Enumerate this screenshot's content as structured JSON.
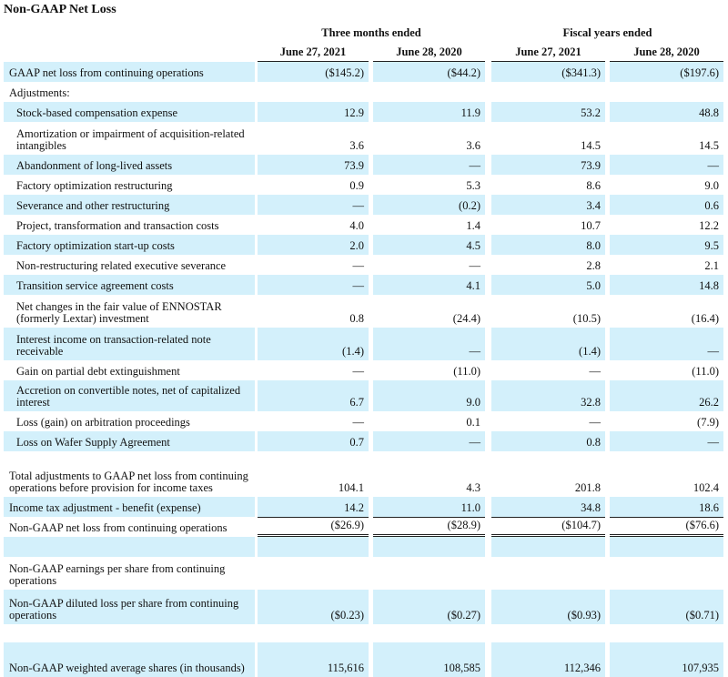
{
  "header": {
    "title": "Non-GAAP Net Loss"
  },
  "columns": {
    "groups": [
      "Three months ended",
      "Fiscal years ended"
    ],
    "dates": [
      "June 27, 2021",
      "June 28, 2020",
      "June 27, 2021",
      "June 28, 2020"
    ]
  },
  "rows": [
    {
      "label": "GAAP net loss from continuing operations",
      "values": [
        "($145.2)",
        "($44.2)",
        "($341.3)",
        "($197.6)"
      ]
    },
    {
      "label": "Adjustments:"
    },
    {
      "label": "Stock-based compensation expense",
      "values": [
        "12.9",
        "11.9",
        "53.2",
        "48.8"
      ]
    },
    {
      "label": "Amortization or impairment of acquisition-related intangibles",
      "values": [
        "3.6",
        "3.6",
        "14.5",
        "14.5"
      ]
    },
    {
      "label": "Abandonment of long-lived assets",
      "values": [
        "73.9",
        "—",
        "73.9",
        "—"
      ]
    },
    {
      "label": "Factory optimization restructuring",
      "values": [
        "0.9",
        "5.3",
        "8.6",
        "9.0"
      ]
    },
    {
      "label": "Severance and other restructuring",
      "values": [
        "—",
        "(0.2)",
        "3.4",
        "0.6"
      ]
    },
    {
      "label": "Project, transformation and transaction costs",
      "values": [
        "4.0",
        "1.4",
        "10.7",
        "12.2"
      ]
    },
    {
      "label": "Factory optimization start-up costs",
      "values": [
        "2.0",
        "4.5",
        "8.0",
        "9.5"
      ]
    },
    {
      "label": "Non-restructuring related executive severance",
      "values": [
        "—",
        "—",
        "2.8",
        "2.1"
      ]
    },
    {
      "label": "Transition service agreement costs",
      "values": [
        "—",
        "4.1",
        "5.0",
        "14.8"
      ]
    },
    {
      "label": "Net changes in the fair value of ENNOSTAR (formerly Lextar) investment",
      "values": [
        "0.8",
        "(24.4)",
        "(10.5)",
        "(16.4)"
      ]
    },
    {
      "label": "Interest income on transaction-related note receivable",
      "values": [
        "(1.4)",
        "—",
        "(1.4)",
        "—"
      ]
    },
    {
      "label": "Gain on partial debt extinguishment",
      "values": [
        "—",
        "(11.0)",
        "—",
        "(11.0)"
      ]
    },
    {
      "label": "Accretion on convertible notes, net of capitalized interest",
      "values": [
        "6.7",
        "9.0",
        "32.8",
        "26.2"
      ]
    },
    {
      "label": "Loss (gain) on arbitration proceedings",
      "values": [
        "—",
        "0.1",
        "—",
        "(7.9)"
      ]
    },
    {
      "label": "Loss on Wafer Supply Agreement",
      "values": [
        "0.7",
        "—",
        "0.8",
        "—"
      ]
    },
    {
      "label": "Total adjustments to GAAP net loss from continuing operations before provision for income taxes",
      "values": [
        "104.1",
        "4.3",
        "201.8",
        "102.4"
      ]
    },
    {
      "label": "Income tax adjustment - benefit (expense)",
      "values": [
        "14.2",
        "11.0",
        "34.8",
        "18.6"
      ]
    },
    {
      "label": "Non-GAAP net loss from continuing operations",
      "values": [
        "($26.9)",
        "($28.9)",
        "($104.7)",
        "($76.6)"
      ]
    },
    {
      "label": "Non-GAAP earnings per share from continuing operations"
    },
    {
      "label": "Non-GAAP diluted loss per share from continuing operations",
      "values": [
        "($0.23)",
        "($0.27)",
        "($0.93)",
        "($0.71)"
      ]
    },
    {
      "label": "Non-GAAP weighted average shares (in thousands)",
      "values": [
        "115,616",
        "108,585",
        "112,346",
        "107,935"
      ]
    }
  ]
}
